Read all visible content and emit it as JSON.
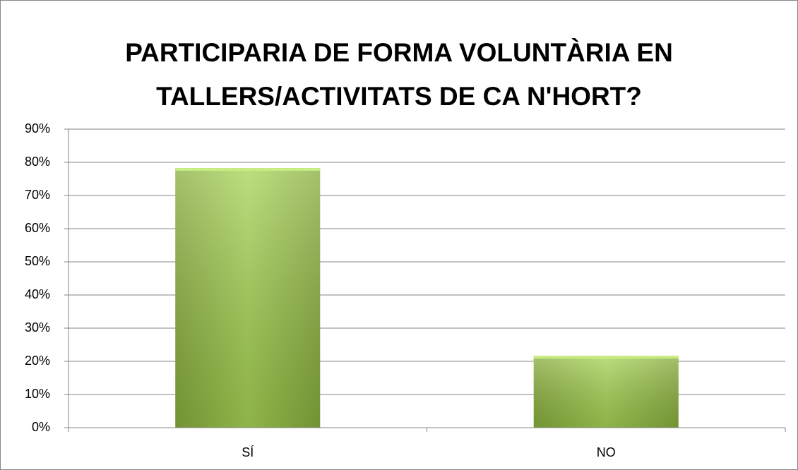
{
  "chart_data": {
    "type": "bar",
    "title": "PARTICIPARIA DE FORMA VOLUNTÀRIA EN TALLERS/ACTIVITATS DE CA N'HORT?",
    "categories": [
      "SÍ",
      "NO"
    ],
    "values": [
      78.3,
      21.7
    ],
    "color": "#9bc94a",
    "ylim": [
      0,
      90
    ],
    "yticks": [
      {
        "value": 0,
        "label": "0%"
      },
      {
        "value": 10,
        "label": "10%"
      },
      {
        "value": 20,
        "label": "20%"
      },
      {
        "value": 30,
        "label": "30%"
      },
      {
        "value": 40,
        "label": "40%"
      },
      {
        "value": 50,
        "label": "50%"
      },
      {
        "value": 60,
        "label": "60%"
      },
      {
        "value": 70,
        "label": "70%"
      },
      {
        "value": 80,
        "label": "80%"
      },
      {
        "value": 90,
        "label": "90%"
      }
    ],
    "grid": true
  }
}
